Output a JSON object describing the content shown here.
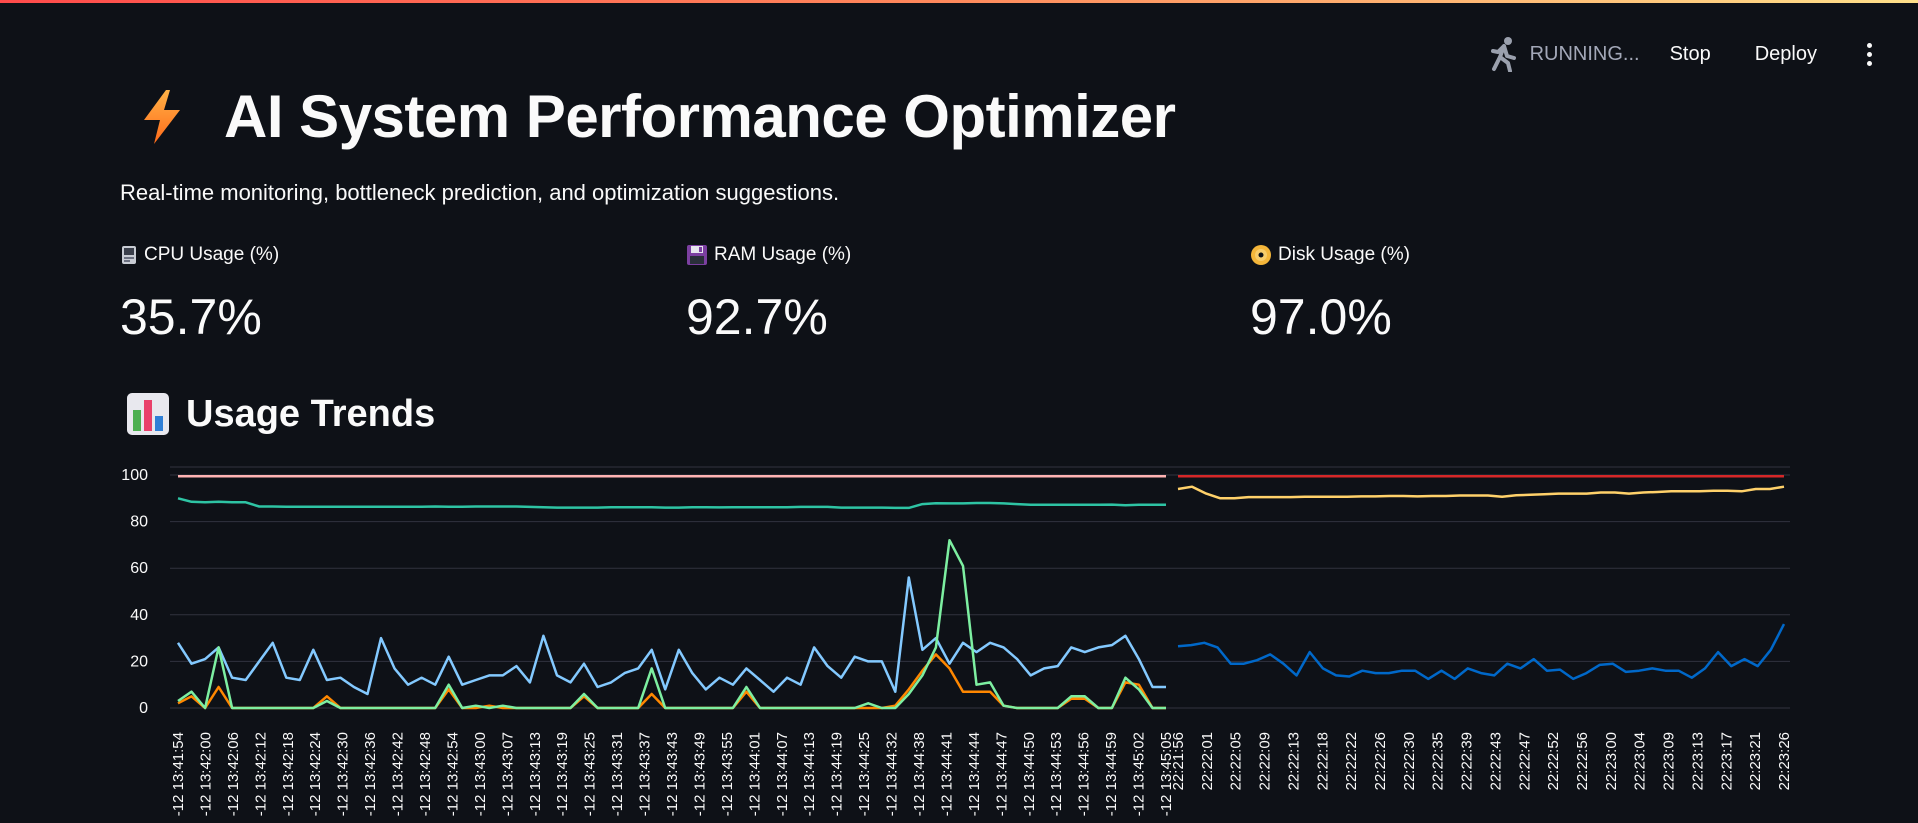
{
  "toolbar": {
    "status_text": "RUNNING...",
    "stop_label": "Stop",
    "deploy_label": "Deploy",
    "status_icon": "running-person-icon",
    "menu_icon": "kebab-menu-icon"
  },
  "header": {
    "icon": "lightning-bolt-icon",
    "title": "AI System Performance Optimizer",
    "subtitle": "Real-time monitoring, bottleneck prediction, and optimization suggestions."
  },
  "metrics": [
    {
      "icon": "computer-icon",
      "label": "CPU Usage (%)",
      "value": "35.7%"
    },
    {
      "icon": "floppy-disk-icon",
      "label": "RAM Usage (%)",
      "value": "92.7%"
    },
    {
      "icon": "optical-disk-icon",
      "label": "Disk Usage (%)",
      "value": "97.0%"
    }
  ],
  "trends": {
    "icon": "bar-chart-icon",
    "title": "Usage Trends"
  },
  "colors": {
    "background": "#0e1117",
    "accent_gradient_start": "#ff4b4b",
    "accent_gradient_end": "#ffe08a",
    "bolt": "#ff7f2a"
  },
  "chart_data": {
    "type": "line",
    "ylim": [
      0,
      100
    ],
    "yticks": [
      0,
      20,
      40,
      60,
      80,
      100
    ],
    "grid": true,
    "panels": [
      {
        "x_labels": [
          "-12 13:41:54",
          "-12 13:42:00",
          "-12 13:42:06",
          "-12 13:42:12",
          "-12 13:42:18",
          "-12 13:42:24",
          "-12 13:42:30",
          "-12 13:42:36",
          "-12 13:42:42",
          "-12 13:42:48",
          "-12 13:42:54",
          "-12 13:43:00",
          "-12 13:43:07",
          "-12 13:43:13",
          "-12 13:43:19",
          "-12 13:43:25",
          "-12 13:43:31",
          "-12 13:43:37",
          "-12 13:43:43",
          "-12 13:43:49",
          "-12 13:43:55",
          "-12 13:44:01",
          "-12 13:44:07",
          "-12 13:44:13",
          "-12 13:44:19",
          "-12 13:44:25",
          "-12 13:44:32",
          "-12 13:44:38",
          "-12 13:44:41",
          "-12 13:44:44",
          "-12 13:44:47",
          "-12 13:44:50",
          "-12 13:44:53",
          "-12 13:44:56",
          "-12 13:44:59",
          "-12 13:45:02",
          "-12 13:45:05"
        ],
        "series": [
          {
            "color": "#ffb3b3",
            "values": [
              99.5,
              99.5,
              99.5,
              99.5,
              99.5,
              99.5,
              99.5,
              99.5,
              99.5,
              99.5,
              99.5,
              99.5,
              99.5,
              99.5,
              99.5,
              99.5,
              99.5,
              99.5,
              99.5,
              99.5,
              99.5,
              99.5,
              99.5,
              99.5,
              99.5,
              99.5,
              99.5,
              99.5,
              99.5,
              99.5,
              99.5,
              99.5,
              99.5,
              99.5,
              99.5,
              99.5,
              99.5,
              99.5,
              99.5,
              99.5,
              99.5,
              99.5,
              99.5,
              99.5,
              99.5,
              99.5,
              99.5,
              99.5,
              99.5,
              99.5,
              99.5,
              99.5,
              99.5,
              99.5,
              99.5,
              99.5,
              99.5,
              99.5,
              99.5,
              99.5,
              99.5,
              99.5,
              99.5,
              99.5,
              99.5,
              99.5,
              99.5,
              99.5,
              99.5,
              99.5,
              99.5,
              99.5,
              99.5,
              99.5
            ]
          },
          {
            "color": "#2ec4a4",
            "values": [
              90,
              88.5,
              88.3,
              88.5,
              88.3,
              88.3,
              86.5,
              86.5,
              86.4,
              86.4,
              86.4,
              86.4,
              86.4,
              86.4,
              86.4,
              86.4,
              86.4,
              86.4,
              86.4,
              86.5,
              86.4,
              86.4,
              86.5,
              86.5,
              86.5,
              86.5,
              86.3,
              86.2,
              86.0,
              86.0,
              86.0,
              86.0,
              86.2,
              86.2,
              86.2,
              86.2,
              86.0,
              86.0,
              86.2,
              86.2,
              86.1,
              86.2,
              86.2,
              86.2,
              86.2,
              86.2,
              86.3,
              86.3,
              86.3,
              86.0,
              86.0,
              86.0,
              86.0,
              85.9,
              85.9,
              87.5,
              87.9,
              87.8,
              87.8,
              88.0,
              88.0,
              87.8,
              87.5,
              87.2,
              87.2,
              87.2,
              87.2,
              87.2,
              87.2,
              87.3,
              87.0,
              87.2,
              87.2,
              87.2
            ]
          },
          {
            "color": "#83c9ff",
            "values": [
              28,
              19,
              21,
              26,
              13,
              12,
              20,
              28,
              13,
              12,
              25,
              12,
              13,
              9,
              6,
              30,
              17,
              10,
              13,
              10,
              22,
              10,
              12,
              14,
              14,
              18,
              11,
              31,
              14,
              11,
              19,
              9,
              11,
              15,
              17,
              25,
              8,
              25,
              15,
              8,
              13,
              10,
              17,
              12,
              7,
              13,
              10,
              26,
              18,
              13,
              22,
              20,
              20,
              7,
              56,
              25,
              30,
              19,
              28,
              24,
              28,
              26,
              21,
              14,
              17,
              18,
              26,
              24,
              26,
              27,
              31,
              21,
              9,
              9
            ]
          },
          {
            "color": "#ff8700",
            "values": [
              2,
              5,
              0,
              9,
              0,
              0,
              0,
              0,
              0,
              0,
              0,
              5,
              0,
              0,
              0,
              0,
              0,
              0,
              0,
              0,
              8,
              0,
              0,
              1,
              0,
              0,
              0,
              0,
              0,
              0,
              5,
              0,
              0,
              0,
              0,
              6,
              0,
              0,
              0,
              0,
              0,
              0,
              7,
              0,
              0,
              0,
              0,
              0,
              0,
              0,
              0,
              0,
              0,
              1,
              8,
              16,
              23,
              17,
              7,
              7,
              7,
              1,
              0,
              0,
              0,
              0,
              4,
              4,
              0,
              0,
              11,
              10,
              0,
              0
            ]
          },
          {
            "color": "#7defa1",
            "values": [
              3,
              7,
              0,
              26,
              0,
              0,
              0,
              0,
              0,
              0,
              0,
              3,
              0,
              0,
              0,
              0,
              0,
              0,
              0,
              0,
              10,
              0,
              1,
              0,
              1,
              0,
              0,
              0,
              0,
              0,
              6,
              0,
              0,
              0,
              0,
              17,
              0,
              0,
              0,
              0,
              0,
              0,
              9,
              0,
              0,
              0,
              0,
              0,
              0,
              0,
              0,
              2,
              0,
              0,
              6,
              14,
              26,
              72,
              61,
              10,
              11,
              1,
              0,
              0,
              0,
              0,
              5,
              5,
              0,
              0,
              13,
              8,
              0,
              0
            ]
          }
        ]
      },
      {
        "x_labels": [
          "22:21:56",
          "22:22:01",
          "22:22:05",
          "22:22:09",
          "22:22:13",
          "22:22:18",
          "22:22:22",
          "22:22:26",
          "22:22:30",
          "22:22:35",
          "22:22:39",
          "22:22:43",
          "22:22:47",
          "22:22:52",
          "22:22:56",
          "22:23:00",
          "22:23:04",
          "22:23:09",
          "22:23:13",
          "22:23:17",
          "22:23:21",
          "22:23:26"
        ],
        "series": [
          {
            "color": "#d62728",
            "values": [
              99.5,
              99.5,
              99.5,
              99.5,
              99.5,
              99.5,
              99.5,
              99.5,
              99.5,
              99.5,
              99.5,
              99.5,
              99.5,
              99.5,
              99.5,
              99.5,
              99.5,
              99.5,
              99.5,
              99.5,
              99.5,
              99.5,
              99.5,
              99.5,
              99.5,
              99.5,
              99.5,
              99.5,
              99.5,
              99.5,
              99.5,
              99.5,
              99.5,
              99.5,
              99.5,
              99.5,
              99.5,
              99.5,
              99.5,
              99.5,
              99.5,
              99.5,
              99.5,
              99.5
            ]
          },
          {
            "color": "#ffd16a",
            "values": [
              94,
              95,
              92,
              90,
              90,
              90.5,
              90.5,
              90.5,
              90.5,
              90.7,
              90.7,
              90.7,
              90.7,
              90.8,
              90.8,
              91,
              91,
              90.8,
              91,
              91,
              91.2,
              91.2,
              91.2,
              90.7,
              91.3,
              91.5,
              91.7,
              92,
              92,
              92,
              92.5,
              92.5,
              92,
              92.5,
              92.7,
              93,
              93,
              93,
              93.2,
              93.2,
              93,
              94,
              94,
              95
            ]
          },
          {
            "color": "#0068c9",
            "values": [
              26.5,
              27,
              28,
              26,
              19,
              19,
              20.5,
              23,
              19,
              14,
              24,
              17,
              14,
              13.5,
              16,
              15,
              15,
              16,
              16,
              12.5,
              16,
              12.5,
              17,
              15,
              14,
              19,
              17,
              21,
              16,
              16.5,
              12.5,
              15,
              18.5,
              19,
              15.5,
              16,
              17,
              16,
              16,
              13,
              17,
              24,
              18,
              21,
              18,
              25,
              36
            ]
          }
        ]
      }
    ]
  }
}
